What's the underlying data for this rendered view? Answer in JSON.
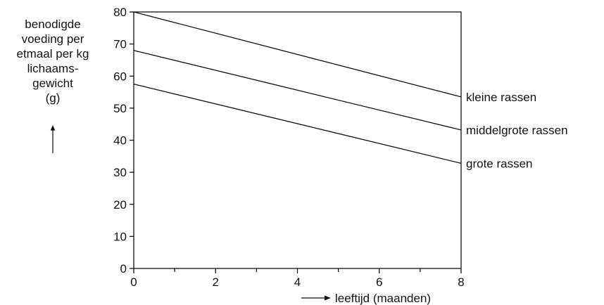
{
  "chart_data": {
    "type": "line",
    "ylabel_lines": [
      "benodigde",
      "voeding per",
      "etmaal per kg",
      "lichaams-",
      "gewicht",
      "(g)"
    ],
    "xlabel": "leeftijd (maanden)",
    "xlim": [
      0,
      8
    ],
    "ylim": [
      0,
      80
    ],
    "x_ticks": [
      0,
      2,
      4,
      6,
      8
    ],
    "x_minor_ticks": [
      1,
      3,
      5,
      7
    ],
    "y_ticks": [
      0,
      10,
      20,
      30,
      40,
      50,
      60,
      70,
      80
    ],
    "series": [
      {
        "name": "kleine rassen",
        "x": [
          0,
          8
        ],
        "y": [
          80,
          53.5
        ]
      },
      {
        "name": "middelgrote rassen",
        "x": [
          0,
          8
        ],
        "y": [
          68,
          43.2
        ]
      },
      {
        "name": "grote rassen",
        "x": [
          0,
          8
        ],
        "y": [
          57.5,
          32.8
        ]
      }
    ],
    "grid": false
  }
}
